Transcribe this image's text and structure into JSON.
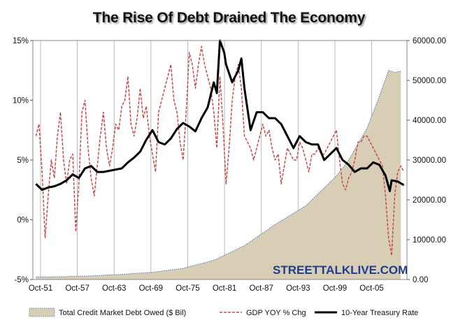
{
  "chart_data": {
    "type": "line",
    "title": "The Rise Of Debt Drained The Economy",
    "x_ticks": [
      "Oct-51",
      "Oct-57",
      "Oct-63",
      "Oct-69",
      "Oct-75",
      "Oct-81",
      "Oct-87",
      "Oct-93",
      "Oct-99",
      "Oct-05"
    ],
    "x_range": [
      1950.5,
      2011.5
    ],
    "y_left_ticks": [
      "-5%",
      "0%",
      "5%",
      "10%",
      "15%"
    ],
    "y_left_range": [
      -5,
      15
    ],
    "y_right_ticks": [
      "0.00",
      "10000.00",
      "20000.00",
      "30000.00",
      "40000.00",
      "50000.00",
      "60000.00"
    ],
    "y_right_range": [
      0,
      60000
    ],
    "grid": "vertical",
    "legend_position": "bottom",
    "watermark": "STREETTALKLIVE.COM",
    "colors": {
      "debt_fill": "#d8ceb6",
      "debt_edge": "#4a6fa5",
      "gdp": "#c84b4b",
      "treasury": "#000000"
    },
    "series": [
      {
        "name": "Total Credit Market Debt Owed ($ Bil)",
        "axis": "right",
        "style": "area",
        "x": [
          1951,
          1955,
          1960,
          1965,
          1970,
          1975,
          1980,
          1985,
          1990,
          1995,
          2000,
          2002,
          2005,
          2007,
          2008.5,
          2009.5,
          2010.5
        ],
        "values": [
          600,
          700,
          900,
          1300,
          1800,
          2800,
          4800,
          8500,
          13800,
          18500,
          26000,
          30000,
          38000,
          46000,
          52500,
          52000,
          52300
        ]
      },
      {
        "name": "GDP YOY % Chg",
        "axis": "left",
        "style": "dashed",
        "x": [
          1951,
          1951.5,
          1952,
          1952.5,
          1953,
          1953.5,
          1954,
          1954.5,
          1955,
          1955.5,
          1956,
          1956.5,
          1957,
          1957.5,
          1958,
          1958.5,
          1959,
          1959.5,
          1960,
          1960.5,
          1961,
          1961.5,
          1962,
          1962.5,
          1963,
          1963.5,
          1964,
          1964.5,
          1965,
          1965.5,
          1966,
          1966.5,
          1967,
          1967.5,
          1968,
          1968.5,
          1969,
          1969.5,
          1970,
          1970.5,
          1971,
          1971.5,
          1972,
          1972.5,
          1973,
          1973.5,
          1974,
          1974.5,
          1975,
          1975.5,
          1976,
          1976.5,
          1977,
          1977.5,
          1978,
          1978.5,
          1979,
          1979.5,
          1980,
          1980.5,
          1981,
          1981.5,
          1982,
          1982.5,
          1983,
          1983.5,
          1984,
          1984.5,
          1985,
          1985.5,
          1986,
          1986.5,
          1987,
          1987.5,
          1988,
          1988.5,
          1989,
          1989.5,
          1990,
          1990.5,
          1991,
          1991.5,
          1992,
          1992.5,
          1993,
          1993.5,
          1994,
          1994.5,
          1995,
          1995.5,
          1996,
          1996.5,
          1997,
          1997.5,
          1998,
          1998.5,
          1999,
          1999.5,
          2000,
          2000.5,
          2001,
          2001.5,
          2002,
          2002.5,
          2003,
          2003.5,
          2004,
          2004.5,
          2005,
          2005.5,
          2006,
          2006.5,
          2007,
          2007.5,
          2008,
          2008.5,
          2009,
          2009.5,
          2010,
          2010.5,
          2011
        ],
        "values": [
          7,
          8,
          4,
          -1.5,
          2,
          5,
          3.5,
          7,
          9,
          5,
          3,
          5,
          5.5,
          -1,
          3,
          9,
          10,
          6,
          3.5,
          2,
          4.5,
          7,
          9,
          6,
          4.5,
          6,
          8,
          7.5,
          9.5,
          10,
          12,
          8,
          7,
          8.5,
          11,
          8.5,
          9.5,
          7,
          5.5,
          4,
          9,
          10,
          11,
          12,
          13,
          10,
          9,
          6.5,
          5,
          9,
          14,
          13,
          11,
          13,
          14.5,
          13,
          12,
          11,
          9,
          6,
          12,
          8,
          3,
          6,
          10,
          12,
          13,
          11,
          7,
          6.5,
          6,
          5,
          6,
          7,
          8,
          7,
          7.5,
          6,
          5,
          5.5,
          3,
          4.5,
          6,
          5.5,
          5,
          5,
          6.5,
          6,
          5,
          4,
          5.5,
          5.5,
          6,
          5.5,
          5.5,
          6,
          6.5,
          7,
          7.5,
          5,
          3,
          2.5,
          3.5,
          4,
          5,
          6.5,
          6.5,
          7,
          7,
          6.5,
          6,
          5.5,
          5,
          4.5,
          2,
          -1.5,
          -3,
          2,
          4,
          4.5,
          4
        ]
      },
      {
        "name": "10-Year Treasury Rate",
        "axis": "left",
        "style": "solid",
        "x": [
          1951,
          1952,
          1953,
          1954,
          1955,
          1956,
          1957,
          1958,
          1959,
          1960,
          1961,
          1962,
          1963,
          1964,
          1965,
          1966,
          1967,
          1968,
          1969,
          1970,
          1971,
          1972,
          1973,
          1974,
          1975,
          1976,
          1977,
          1978,
          1979,
          1980,
          1980.5,
          1981,
          1981.7,
          1982,
          1983,
          1984,
          1984.5,
          1985,
          1986,
          1987,
          1988,
          1989,
          1990,
          1991,
          1992,
          1993,
          1994,
          1995,
          1996,
          1997,
          1998,
          1999,
          2000,
          2001,
          2002,
          2003,
          2004,
          2005,
          2006,
          2007,
          2008,
          2008.7,
          2009,
          2010,
          2011
        ],
        "values": [
          3,
          2.5,
          2.7,
          2.8,
          3,
          3.3,
          3.8,
          3.5,
          4.3,
          4.5,
          4,
          4,
          4.1,
          4.2,
          4.3,
          4.8,
          5.2,
          5.7,
          6.7,
          7.5,
          6.5,
          6.3,
          6.8,
          7.6,
          8.1,
          7.8,
          7.4,
          8.5,
          9.4,
          11.5,
          10.6,
          15,
          14,
          13,
          11.5,
          12.5,
          13.5,
          11,
          7.5,
          9,
          9,
          8.5,
          8.5,
          8,
          7,
          6,
          7,
          6.5,
          6.3,
          6.3,
          5,
          5.5,
          6,
          5,
          4.6,
          4,
          4.3,
          4.3,
          4.8,
          4.6,
          3.7,
          2.4,
          3.3,
          3.2,
          2.9
        ]
      }
    ]
  }
}
